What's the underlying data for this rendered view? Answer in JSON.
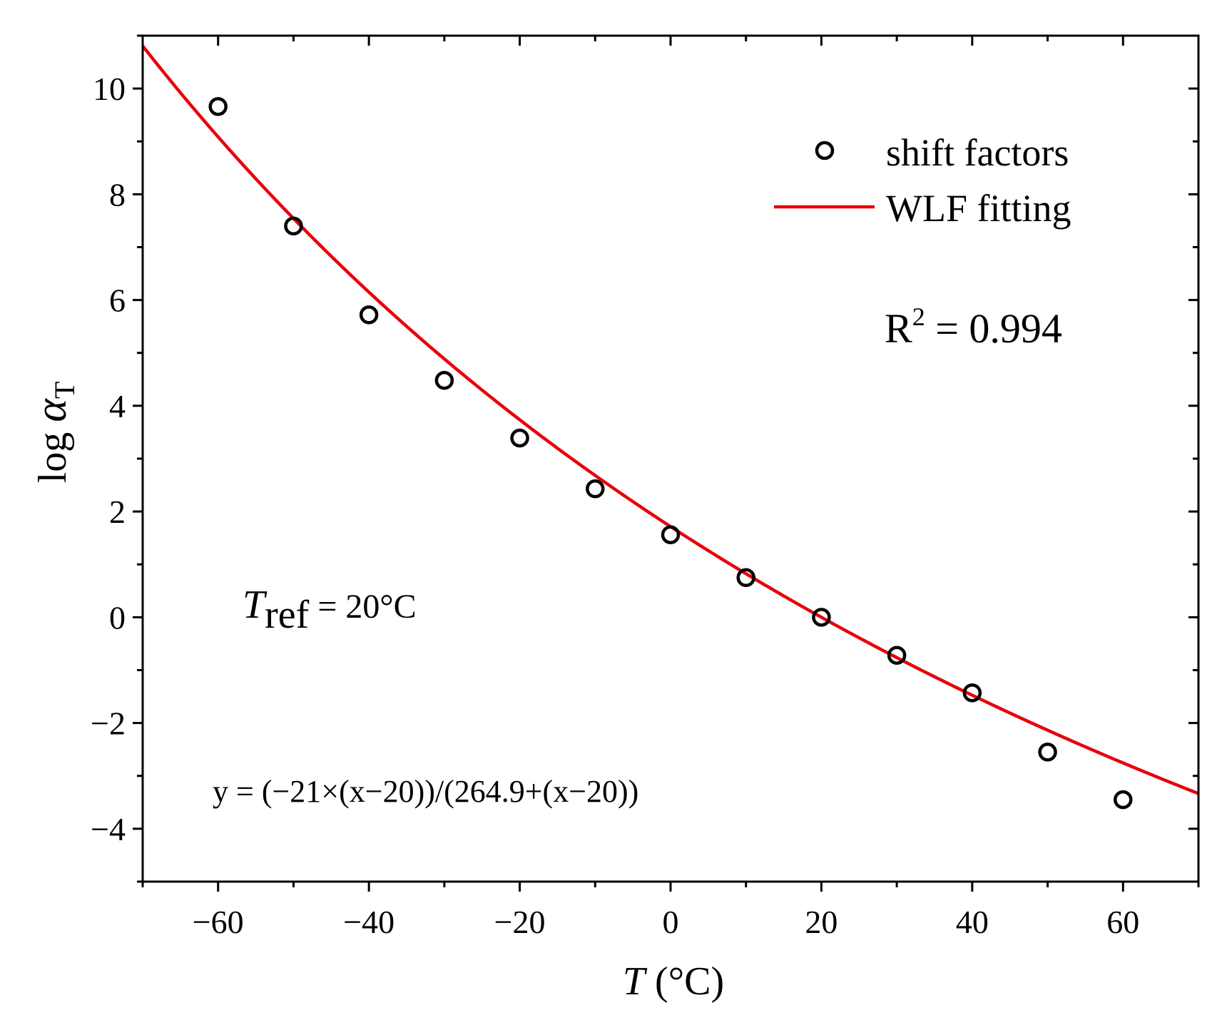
{
  "chart_data": {
    "type": "scatter",
    "x_axis": {
      "range": [
        -70,
        70
      ],
      "ticks": [
        -60,
        -40,
        -20,
        0,
        20,
        40,
        60
      ],
      "tick_labels": [
        "−60",
        "−40",
        "−20",
        "0",
        "20",
        "40",
        "60"
      ],
      "minor_step": 10,
      "label_var": "T",
      "label_unit": " (°C)"
    },
    "y_axis": {
      "range": [
        -5,
        11
      ],
      "ticks": [
        -4,
        -2,
        0,
        2,
        4,
        6,
        8,
        10
      ],
      "tick_labels": [
        "−4",
        "−2",
        "0",
        "2",
        "4",
        "6",
        "8",
        "10"
      ],
      "minor_step": 1,
      "label_prefix": "log ",
      "label_var": "α",
      "label_sub": "T"
    },
    "series": [
      {
        "name": "shift factors",
        "kind": "scatter",
        "marker": "open-circle",
        "color": "#000000",
        "x": [
          -60,
          -50,
          -40,
          -30,
          -20,
          -10,
          0,
          10,
          20,
          30,
          40,
          50,
          60
        ],
        "y": [
          9.66,
          7.4,
          5.72,
          4.48,
          3.39,
          2.43,
          1.56,
          0.75,
          0.0,
          -0.72,
          -1.43,
          -2.55,
          -3.45
        ]
      },
      {
        "name": "WLF fitting",
        "kind": "line",
        "color": "#e8000b",
        "equation": {
          "c1": 21,
          "c2": 264.9,
          "t_ref": 20
        },
        "x_range": [
          -70,
          70
        ]
      }
    ],
    "legend": {
      "position": "top-right",
      "entries": [
        "shift factors",
        "WLF fitting"
      ]
    },
    "annotations": {
      "r2_prefix": "R",
      "r2_sup": "2",
      "r2_value": " = 0.994",
      "tref_var": "T",
      "tref_sub": "ref",
      "tref_value": " = 20°C",
      "equation": "y = (−21×(x−20))/(264.9+(x−20))"
    }
  }
}
